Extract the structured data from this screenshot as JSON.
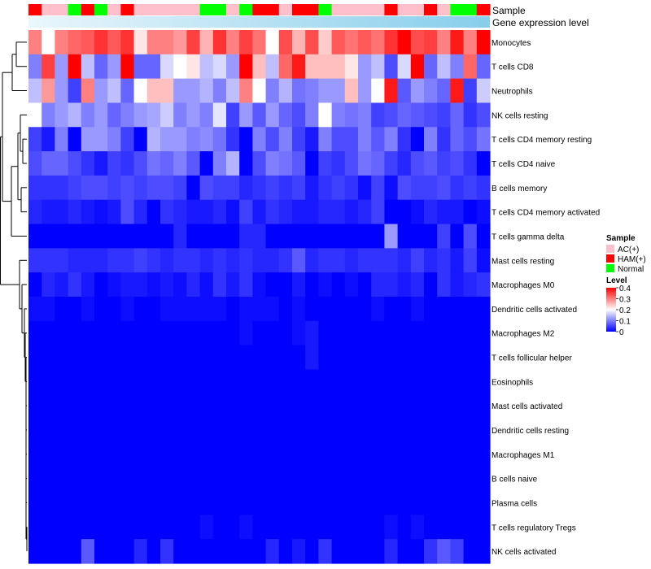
{
  "chart_data": {
    "type": "heatmap",
    "annotation_labels": {
      "sample": "Sample",
      "gene_expression": "Gene expression level"
    },
    "legend": {
      "sample_title": "Sample",
      "sample_entries": [
        {
          "label": "AC(+)",
          "color": "#FFC0CB"
        },
        {
          "label": "HAM(+)",
          "color": "#FF0000"
        },
        {
          "label": "Normal",
          "color": "#00FF00"
        }
      ],
      "level_title": "Level",
      "level_ticks": [
        "0.4",
        "0.3",
        "0.2",
        "0.1",
        "0"
      ],
      "level_range": [
        0,
        0.4
      ]
    },
    "colors": {
      "low": "#0000FF",
      "mid": "#FFFFFF",
      "high": "#FF0000",
      "gene_bar_left": "#EAF6FC",
      "gene_bar_right": "#87CEEB"
    },
    "sample_groups": [
      "HAM(+)",
      "AC(+)",
      "AC(+)",
      "Normal",
      "HAM(+)",
      "Normal",
      "AC(+)",
      "HAM(+)",
      "AC(+)",
      "AC(+)",
      "AC(+)",
      "AC(+)",
      "AC(+)",
      "Normal",
      "Normal",
      "AC(+)",
      "Normal",
      "HAM(+)",
      "HAM(+)",
      "AC(+)",
      "HAM(+)",
      "HAM(+)",
      "Normal",
      "AC(+)",
      "AC(+)",
      "AC(+)",
      "AC(+)",
      "HAM(+)",
      "AC(+)",
      "AC(+)",
      "HAM(+)",
      "AC(+)",
      "Normal",
      "Normal",
      "HAM(+)"
    ],
    "rows": [
      "Monocytes",
      "T cells CD8",
      "Neutrophils",
      "NK cells resting",
      "T cells CD4 memory resting",
      "T cells CD4 naive",
      "B cells memory",
      "T cells CD4 memory activated",
      "T cells gamma delta",
      "Mast cells resting",
      "Macrophages M0",
      "Dendritic cells activated",
      "Macrophages M2",
      "T cells follicular helper",
      "Eosinophils",
      "Mast cells activated",
      "Dendritic cells resting",
      "Macrophages M1",
      "B cells naive",
      "Plasma cells",
      "T cells regulatory  Tregs",
      "NK cells activated"
    ],
    "values": [
      [
        0.3,
        0.2,
        0.3,
        0.32,
        0.33,
        0.36,
        0.33,
        0.36,
        0.22,
        0.3,
        0.3,
        0.28,
        0.35,
        0.26,
        0.36,
        0.3,
        0.35,
        0.31,
        0.2,
        0.34,
        0.26,
        0.34,
        0.24,
        0.33,
        0.31,
        0.33,
        0.31,
        0.36,
        0.4,
        0.34,
        0.35,
        0.3,
        0.38,
        0.3,
        0.4
      ],
      [
        0.1,
        0.35,
        0.12,
        0.4,
        0.15,
        0.08,
        0.12,
        0.4,
        0.08,
        0.08,
        0.17,
        0.2,
        0.22,
        0.15,
        0.17,
        0.12,
        0.4,
        0.25,
        0.15,
        0.32,
        0.38,
        0.25,
        0.25,
        0.25,
        0.22,
        0.12,
        0.15,
        0.06,
        0.17,
        0.4,
        0.08,
        0.15,
        0.1,
        0.32,
        0.08
      ],
      [
        0.15,
        0.28,
        0.12,
        0.05,
        0.3,
        0.12,
        0.15,
        0.08,
        0.2,
        0.25,
        0.25,
        0.12,
        0.12,
        0.14,
        0.1,
        0.15,
        0.3,
        0.2,
        0.1,
        0.14,
        0.09,
        0.1,
        0.12,
        0.12,
        0.25,
        0.12,
        0.2,
        0.38,
        0.07,
        0.12,
        0.1,
        0.08,
        0.38,
        0.05,
        0.16
      ],
      [
        0.2,
        0.1,
        0.12,
        0.14,
        0.1,
        0.12,
        0.08,
        0.1,
        0.12,
        0.13,
        0.16,
        0.1,
        0.12,
        0.1,
        0.18,
        0.05,
        0.12,
        0.07,
        0.12,
        0.08,
        0.06,
        0.1,
        0.2,
        0.1,
        0.09,
        0.1,
        0.05,
        0.06,
        0.08,
        0.07,
        0.06,
        0.05,
        0.08,
        0.04,
        0.06
      ],
      [
        0.05,
        0.02,
        0.1,
        0.0,
        0.12,
        0.12,
        0.1,
        0.05,
        0.0,
        0.14,
        0.12,
        0.12,
        0.1,
        0.11,
        0.09,
        0.04,
        0.0,
        0.1,
        0.06,
        0.1,
        0.05,
        0.02,
        0.1,
        0.06,
        0.06,
        0.1,
        0.07,
        0.1,
        0.04,
        0.0,
        0.1,
        0.04,
        0.08,
        0.06,
        0.09
      ],
      [
        0.06,
        0.08,
        0.08,
        0.06,
        0.04,
        0.02,
        0.05,
        0.04,
        0.06,
        0.09,
        0.08,
        0.1,
        0.07,
        0.0,
        0.1,
        0.14,
        0.0,
        0.06,
        0.1,
        0.09,
        0.07,
        0.0,
        0.05,
        0.04,
        0.06,
        0.09,
        0.08,
        0.05,
        0.03,
        0.06,
        0.07,
        0.05,
        0.06,
        0.04,
        0.0
      ],
      [
        0.04,
        0.04,
        0.04,
        0.05,
        0.06,
        0.06,
        0.05,
        0.06,
        0.05,
        0.06,
        0.06,
        0.05,
        0.0,
        0.06,
        0.05,
        0.05,
        0.03,
        0.04,
        0.05,
        0.04,
        0.05,
        0.02,
        0.04,
        0.05,
        0.04,
        0.01,
        0.05,
        0.01,
        0.06,
        0.05,
        0.05,
        0.06,
        0.04,
        0.05,
        0.04
      ],
      [
        0.03,
        0.02,
        0.02,
        0.03,
        0.02,
        0.01,
        0.02,
        0.06,
        0.03,
        0.0,
        0.04,
        0.03,
        0.02,
        0.02,
        0.03,
        0.01,
        0.05,
        0.02,
        0.04,
        0.03,
        0.02,
        0.02,
        0.03,
        0.03,
        0.02,
        0.03,
        0.05,
        0.0,
        0.0,
        0.01,
        0.03,
        0.02,
        0.02,
        0.0,
        0.01
      ],
      [
        0.0,
        0.0,
        0.0,
        0.0,
        0.0,
        0.0,
        0.0,
        0.0,
        0.0,
        0.0,
        0.0,
        0.03,
        0.0,
        0.0,
        0.0,
        0.0,
        0.03,
        0.03,
        0.0,
        0.0,
        0.0,
        0.0,
        0.0,
        0.0,
        0.0,
        0.0,
        0.0,
        0.12,
        0.0,
        0.0,
        0.0,
        0.05,
        0.0,
        0.06,
        0.0
      ],
      [
        0.04,
        0.04,
        0.04,
        0.03,
        0.03,
        0.03,
        0.04,
        0.04,
        0.05,
        0.04,
        0.03,
        0.04,
        0.04,
        0.03,
        0.04,
        0.03,
        0.04,
        0.03,
        0.03,
        0.04,
        0.07,
        0.03,
        0.04,
        0.04,
        0.03,
        0.04,
        0.04,
        0.04,
        0.03,
        0.05,
        0.03,
        0.04,
        0.02,
        0.05,
        0.01
      ],
      [
        0.0,
        0.03,
        0.02,
        0.04,
        0.02,
        0.0,
        0.01,
        0.02,
        0.02,
        0.01,
        0.02,
        0.01,
        0.03,
        0.01,
        0.04,
        0.02,
        0.04,
        0.01,
        0.0,
        0.0,
        0.02,
        0.0,
        0.01,
        0.0,
        0.01,
        0.0,
        0.03,
        0.03,
        0.02,
        0.03,
        0.0,
        0.04,
        0.02,
        0.03,
        0.04
      ],
      [
        0.01,
        0.01,
        0.0,
        0.0,
        0.01,
        0.0,
        0.0,
        0.01,
        0.0,
        0.0,
        0.01,
        0.01,
        0.01,
        0.01,
        0.01,
        0.0,
        0.01,
        0.01,
        0.01,
        0.0,
        0.01,
        0.0,
        0.0,
        0.0,
        0.0,
        0.0,
        0.01,
        0.0,
        0.0,
        0.01,
        0.0,
        0.0,
        0.0,
        0.0,
        0.0
      ],
      [
        0.0,
        0.0,
        0.0,
        0.0,
        0.0,
        0.0,
        0.0,
        0.0,
        0.0,
        0.0,
        0.0,
        0.0,
        0.0,
        0.0,
        0.0,
        0.0,
        0.01,
        0.0,
        0.0,
        0.0,
        0.01,
        0.02,
        0.0,
        0.0,
        0.0,
        0.0,
        0.0,
        0.0,
        0.0,
        0.0,
        0.0,
        0.0,
        0.0,
        0.0,
        0.0
      ],
      [
        0.0,
        0.0,
        0.0,
        0.0,
        0.0,
        0.0,
        0.0,
        0.0,
        0.0,
        0.0,
        0.0,
        0.0,
        0.0,
        0.0,
        0.0,
        0.0,
        0.0,
        0.0,
        0.0,
        0.0,
        0.0,
        0.02,
        0.0,
        0.0,
        0.0,
        0.0,
        0.0,
        0.0,
        0.0,
        0.0,
        0.0,
        0.0,
        0.0,
        0.0,
        0.0
      ],
      [
        0.0,
        0.0,
        0.0,
        0.0,
        0.0,
        0.0,
        0.0,
        0.0,
        0.0,
        0.0,
        0.0,
        0.0,
        0.0,
        0.0,
        0.0,
        0.0,
        0.0,
        0.0,
        0.0,
        0.0,
        0.0,
        0.0,
        0.0,
        0.0,
        0.0,
        0.0,
        0.0,
        0.0,
        0.0,
        0.0,
        0.0,
        0.0,
        0.0,
        0.0,
        0.0
      ],
      [
        0.0,
        0.0,
        0.0,
        0.0,
        0.0,
        0.0,
        0.0,
        0.0,
        0.0,
        0.0,
        0.0,
        0.0,
        0.0,
        0.0,
        0.0,
        0.0,
        0.0,
        0.0,
        0.0,
        0.0,
        0.0,
        0.0,
        0.0,
        0.0,
        0.0,
        0.0,
        0.0,
        0.0,
        0.0,
        0.0,
        0.0,
        0.0,
        0.0,
        0.0,
        0.0
      ],
      [
        0.0,
        0.0,
        0.0,
        0.0,
        0.0,
        0.0,
        0.0,
        0.0,
        0.0,
        0.0,
        0.0,
        0.0,
        0.0,
        0.0,
        0.0,
        0.0,
        0.0,
        0.0,
        0.0,
        0.0,
        0.0,
        0.0,
        0.0,
        0.0,
        0.0,
        0.0,
        0.0,
        0.0,
        0.0,
        0.0,
        0.0,
        0.0,
        0.0,
        0.0,
        0.0
      ],
      [
        0.0,
        0.0,
        0.0,
        0.0,
        0.0,
        0.0,
        0.0,
        0.0,
        0.0,
        0.0,
        0.0,
        0.0,
        0.0,
        0.0,
        0.0,
        0.0,
        0.0,
        0.0,
        0.0,
        0.0,
        0.0,
        0.0,
        0.0,
        0.0,
        0.0,
        0.0,
        0.0,
        0.0,
        0.0,
        0.0,
        0.0,
        0.0,
        0.0,
        0.0,
        0.0
      ],
      [
        0.0,
        0.0,
        0.0,
        0.0,
        0.0,
        0.0,
        0.0,
        0.0,
        0.0,
        0.0,
        0.0,
        0.0,
        0.0,
        0.0,
        0.0,
        0.0,
        0.0,
        0.0,
        0.0,
        0.0,
        0.0,
        0.0,
        0.0,
        0.0,
        0.0,
        0.0,
        0.0,
        0.0,
        0.0,
        0.0,
        0.0,
        0.0,
        0.0,
        0.0,
        0.0
      ],
      [
        0.0,
        0.0,
        0.0,
        0.0,
        0.0,
        0.0,
        0.0,
        0.0,
        0.0,
        0.0,
        0.0,
        0.0,
        0.0,
        0.0,
        0.0,
        0.0,
        0.0,
        0.0,
        0.0,
        0.0,
        0.0,
        0.0,
        0.0,
        0.0,
        0.0,
        0.0,
        0.0,
        0.0,
        0.0,
        0.0,
        0.0,
        0.0,
        0.0,
        0.0,
        0.0
      ],
      [
        0.0,
        0.0,
        0.0,
        0.0,
        0.0,
        0.0,
        0.0,
        0.0,
        0.0,
        0.0,
        0.0,
        0.0,
        0.0,
        0.01,
        0.0,
        0.0,
        0.01,
        0.0,
        0.0,
        0.0,
        0.0,
        0.0,
        0.0,
        0.0,
        0.0,
        0.0,
        0.0,
        0.01,
        0.0,
        0.01,
        0.0,
        0.0,
        0.0,
        0.0,
        0.0
      ],
      [
        0.0,
        0.0,
        0.0,
        0.0,
        0.07,
        0.0,
        0.0,
        0.0,
        0.03,
        0.0,
        0.04,
        0.0,
        0.0,
        0.0,
        0.0,
        0.0,
        0.0,
        0.0,
        0.03,
        0.0,
        0.02,
        0.0,
        0.04,
        0.0,
        0.0,
        0.0,
        0.0,
        0.03,
        0.0,
        0.0,
        0.04,
        0.07,
        0.05,
        0.0,
        0.0
      ]
    ]
  }
}
